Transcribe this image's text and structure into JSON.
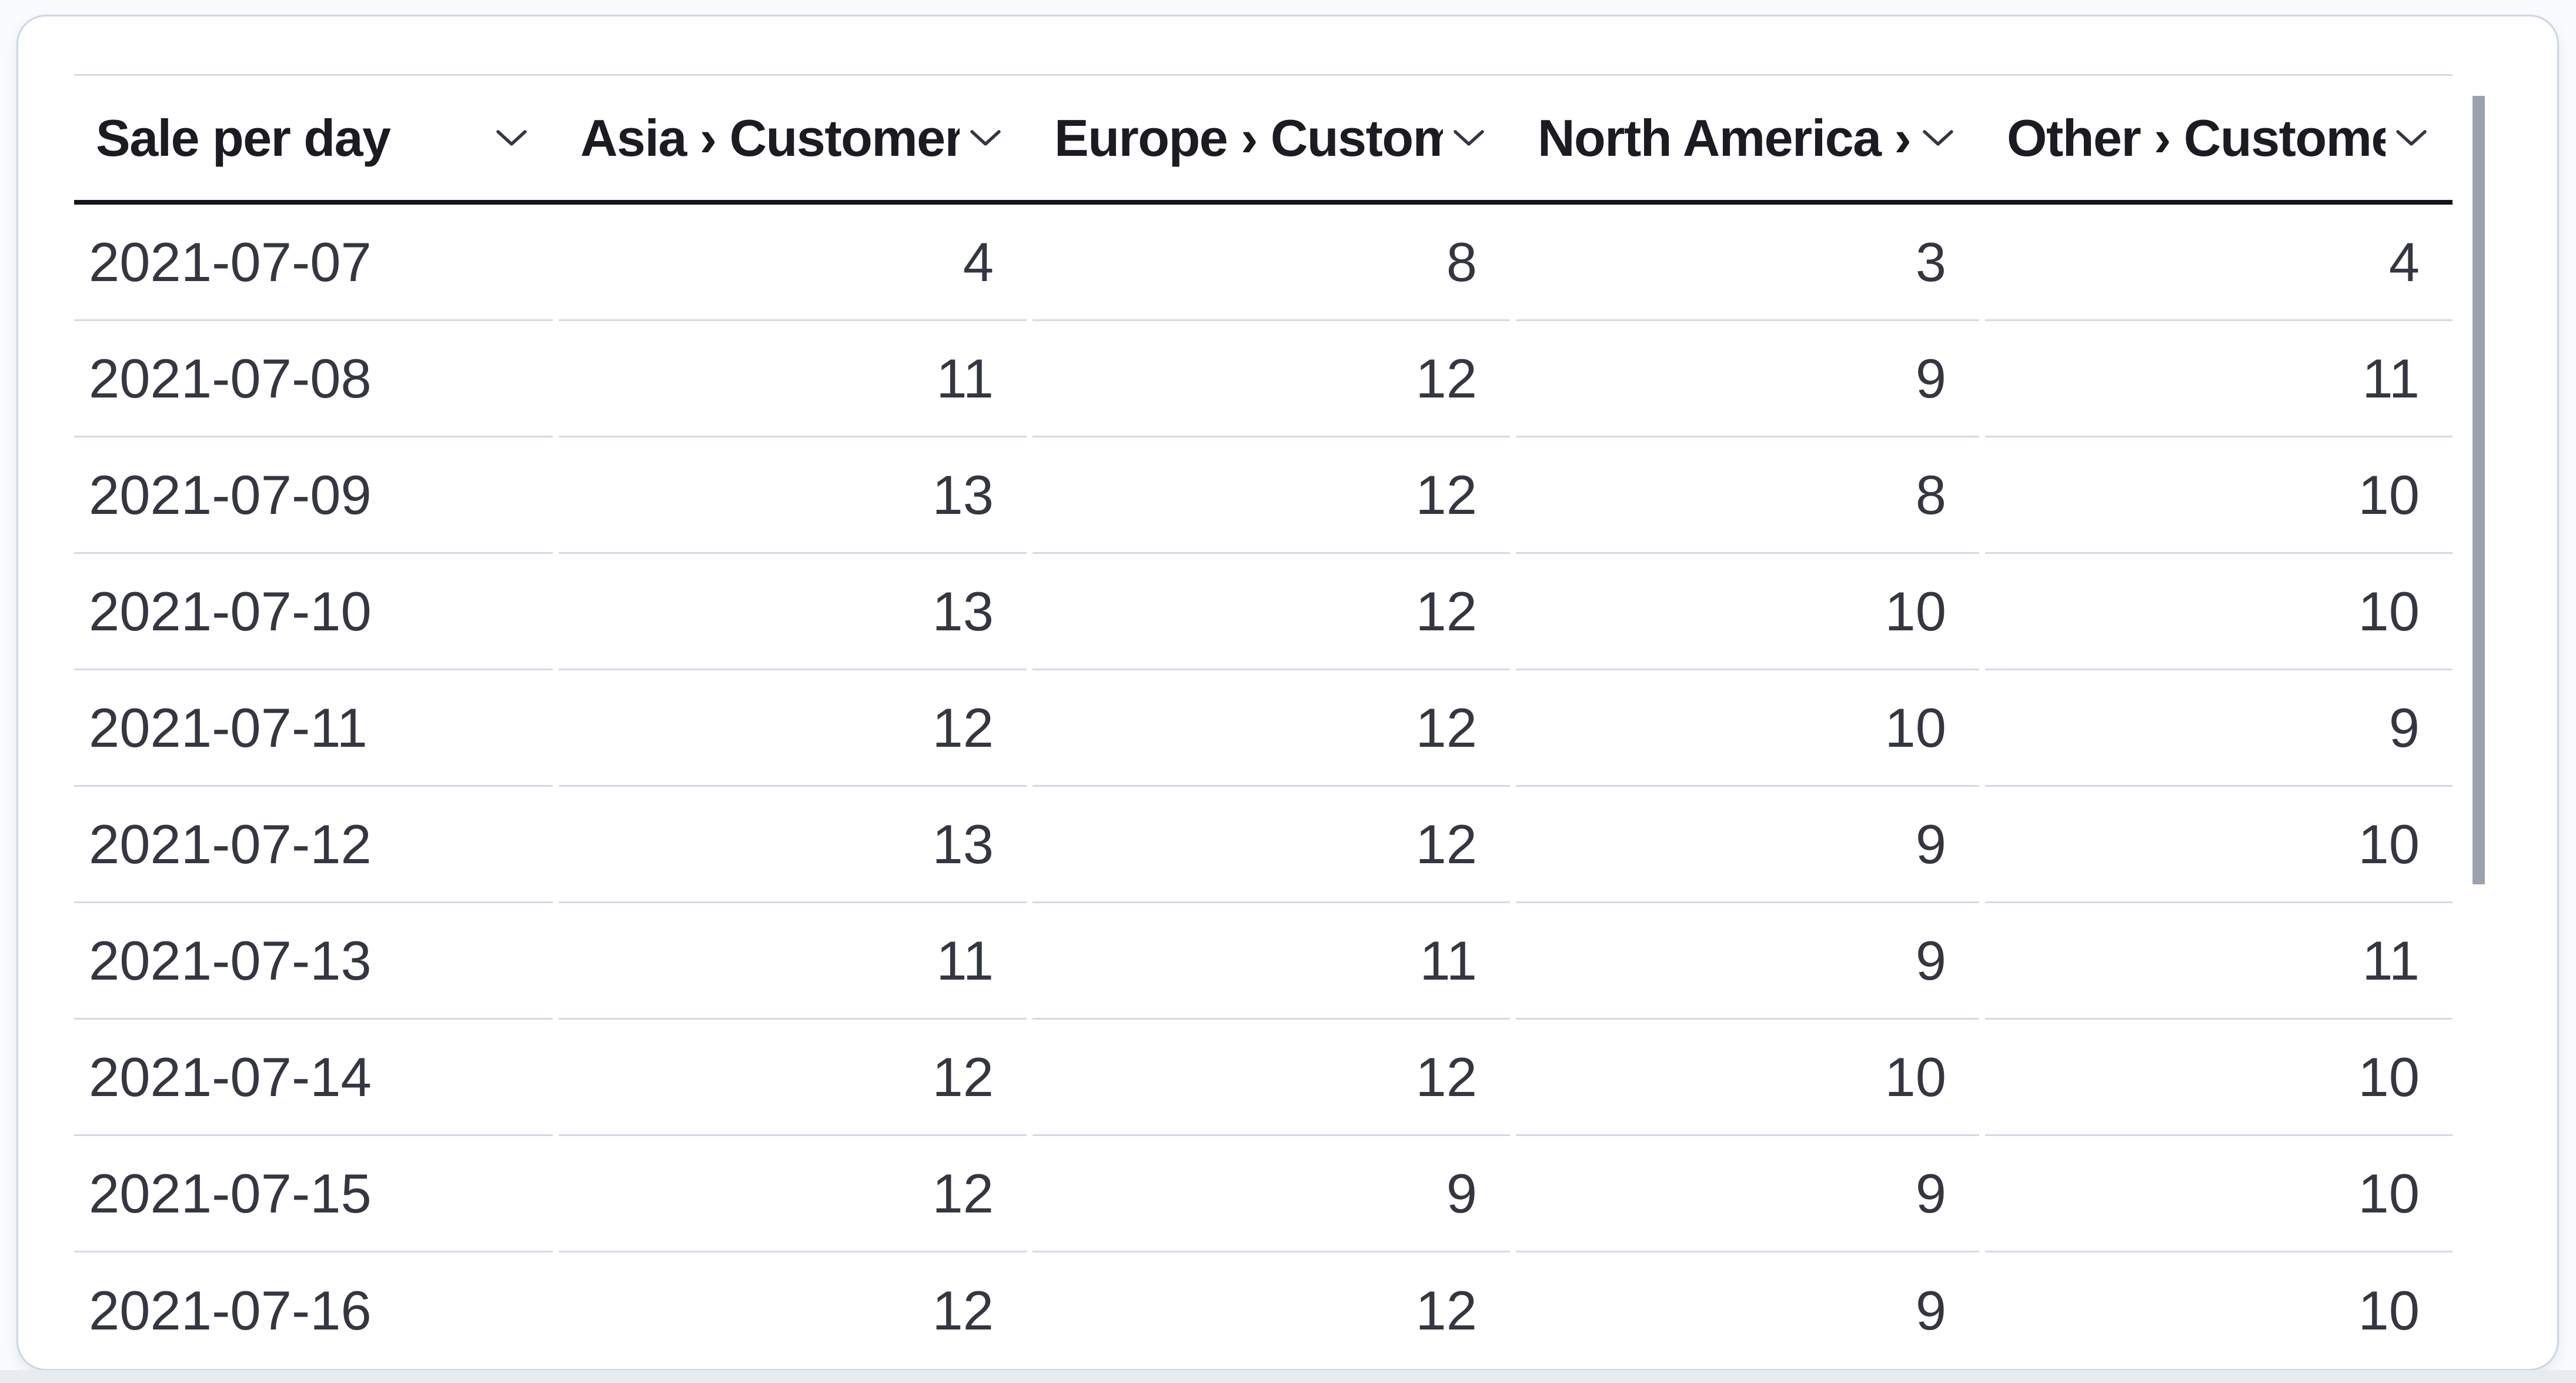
{
  "table": {
    "columns": [
      {
        "id": "sale-per-day",
        "label": "Sale per day"
      },
      {
        "id": "asia-customers",
        "label": "Asia › Customers"
      },
      {
        "id": "europe-customers",
        "label": "Europe › Custom"
      },
      {
        "id": "north-america-customers",
        "label": "North America ›"
      },
      {
        "id": "other-customers",
        "label": "Other › Custome"
      }
    ],
    "rows": [
      [
        "2021-07-07",
        "4",
        "8",
        "3",
        "4"
      ],
      [
        "2021-07-08",
        "11",
        "12",
        "9",
        "11"
      ],
      [
        "2021-07-09",
        "13",
        "12",
        "8",
        "10"
      ],
      [
        "2021-07-10",
        "13",
        "12",
        "10",
        "10"
      ],
      [
        "2021-07-11",
        "12",
        "12",
        "10",
        "9"
      ],
      [
        "2021-07-12",
        "13",
        "12",
        "9",
        "10"
      ],
      [
        "2021-07-13",
        "11",
        "11",
        "9",
        "11"
      ],
      [
        "2021-07-14",
        "12",
        "12",
        "10",
        "10"
      ],
      [
        "2021-07-15",
        "12",
        "9",
        "9",
        "10"
      ],
      [
        "2021-07-16",
        "12",
        "12",
        "9",
        "10"
      ]
    ]
  },
  "icons": {
    "column_menu": "chevron-down-icon"
  },
  "colors": {
    "page_bg": "#fafbfe",
    "bottom_strip": "#e8ecf1",
    "card_border": "#ccd5e3",
    "divider": "#d3dae6",
    "header_underline": "#13161b",
    "header_text": "#1a1c21",
    "body_text": "#343741",
    "scrollbar_thumb": "#9aa2ae"
  }
}
